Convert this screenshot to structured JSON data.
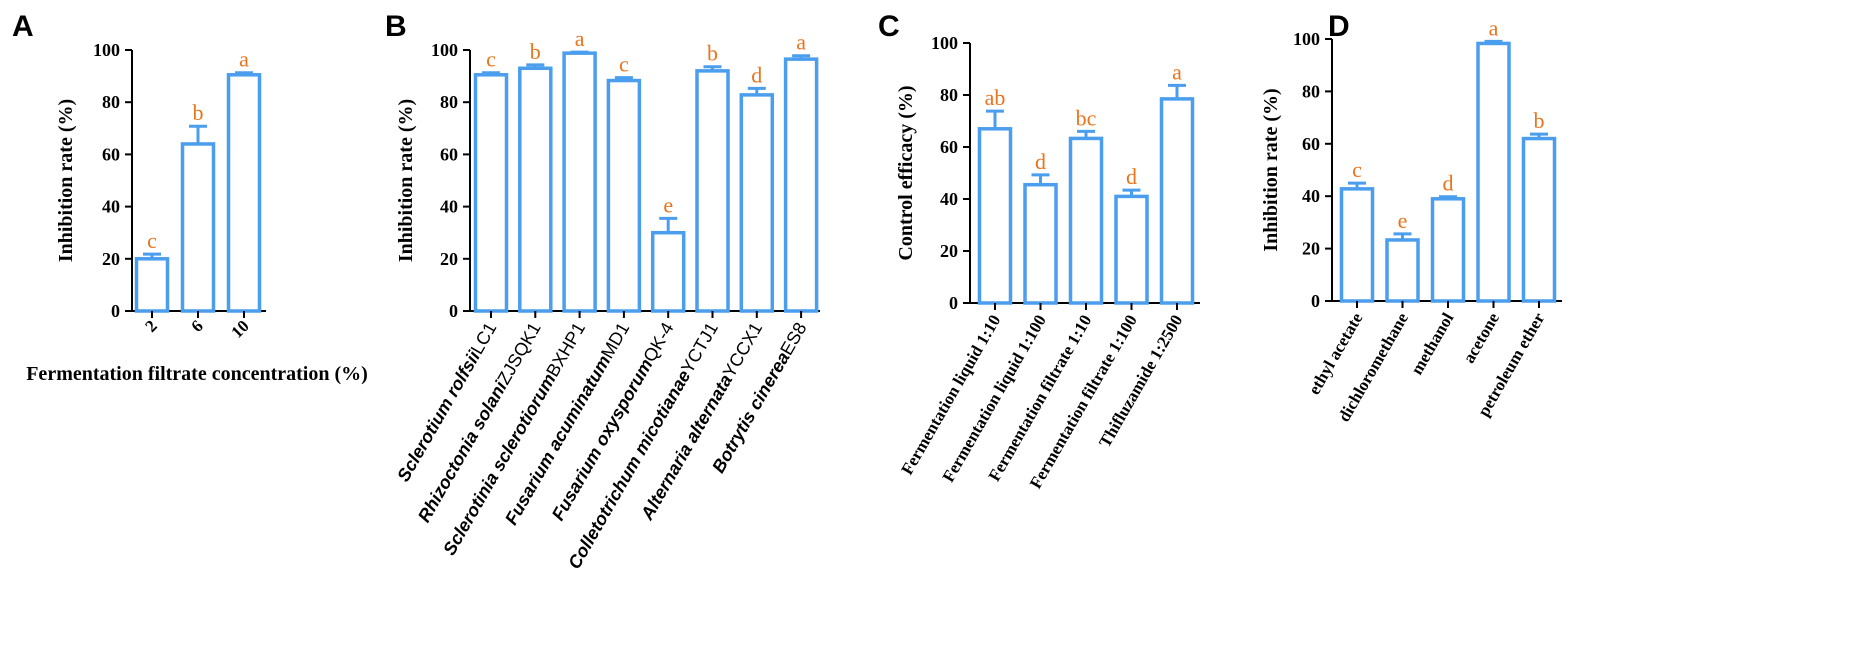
{
  "colors": {
    "bar": "#4a9eed",
    "axis": "#000000",
    "letter": "#e8741c"
  },
  "chart_data": [
    {
      "panel": "A",
      "type": "bar",
      "xlabel": "Fermentation filtrate concentration (%)",
      "ylabel": "Inhibition rate (%)",
      "ylim": [
        0,
        100
      ],
      "yticks": [
        0,
        20,
        40,
        60,
        80,
        100
      ],
      "categories": [
        "2",
        "6",
        "10"
      ],
      "values": [
        20,
        64,
        90.5
      ],
      "errors": [
        1.8,
        6.8,
        0.8
      ],
      "letters": [
        "c",
        "b",
        "a"
      ]
    },
    {
      "panel": "B",
      "type": "bar",
      "xlabel": "",
      "ylabel": "Inhibition rate (%)",
      "ylim": [
        0,
        100
      ],
      "yticks": [
        0,
        20,
        40,
        60,
        80,
        100
      ],
      "categories": [
        {
          "species": "Sclerotium rolfsii",
          "strain": "LC1"
        },
        {
          "species": "Rhizoctonia solani",
          "strain": "ZJSQK1"
        },
        {
          "species": "Sclerotinia sclerotiorum",
          "strain": "BXHP1"
        },
        {
          "species": "Fusarium acuminatum",
          "strain": "MD1"
        },
        {
          "species": "Fusarium oxysporum",
          "strain": "QK-4"
        },
        {
          "species": "Colletotrichum micotianae",
          "strain": "YCTJ1"
        },
        {
          "species": "Alternaria alternata",
          "strain": "YCCX1"
        },
        {
          "species": "Botrytis cinerea",
          "strain": "ES8"
        }
      ],
      "values": [
        90.5,
        93,
        98.8,
        88.3,
        30,
        92,
        82.8,
        96.5
      ],
      "errors": [
        0.8,
        1.3,
        0.4,
        1.1,
        5.5,
        1.6,
        2.5,
        1.3
      ],
      "letters": [
        "c",
        "b",
        "a",
        "c",
        "e",
        "b",
        "d",
        "a"
      ]
    },
    {
      "panel": "C",
      "type": "bar",
      "xlabel": "",
      "ylabel": "Control efficacy (%)",
      "ylim": [
        0,
        100
      ],
      "yticks": [
        0,
        20,
        40,
        60,
        80,
        100
      ],
      "categories": [
        "Fermentation liquid 1:10",
        "Fermentation liquid 1:100",
        "Fermentation filtrate 1:10",
        "Fermentation filtrate 1:100",
        "Thifluzamide 1:2500"
      ],
      "values": [
        67,
        45.5,
        63.3,
        41,
        78.5
      ],
      "errors": [
        6.8,
        3.8,
        2.7,
        2.4,
        5.2
      ],
      "letters": [
        "ab",
        "d",
        "bc",
        "d",
        "a"
      ]
    },
    {
      "panel": "D",
      "type": "bar",
      "xlabel": "",
      "ylabel": "Inhibition rate (%)",
      "ylim": [
        0,
        100
      ],
      "yticks": [
        0,
        20,
        40,
        60,
        80,
        100
      ],
      "categories": [
        "ethyl acetate",
        "dichloromethane",
        "methanol",
        "acetone",
        "petroleum ether"
      ],
      "values": [
        42.8,
        23.3,
        39,
        98.3,
        62
      ],
      "errors": [
        2.2,
        2.3,
        0.8,
        0.8,
        1.7
      ],
      "letters": [
        "c",
        "e",
        "d",
        "a",
        "b"
      ]
    }
  ]
}
